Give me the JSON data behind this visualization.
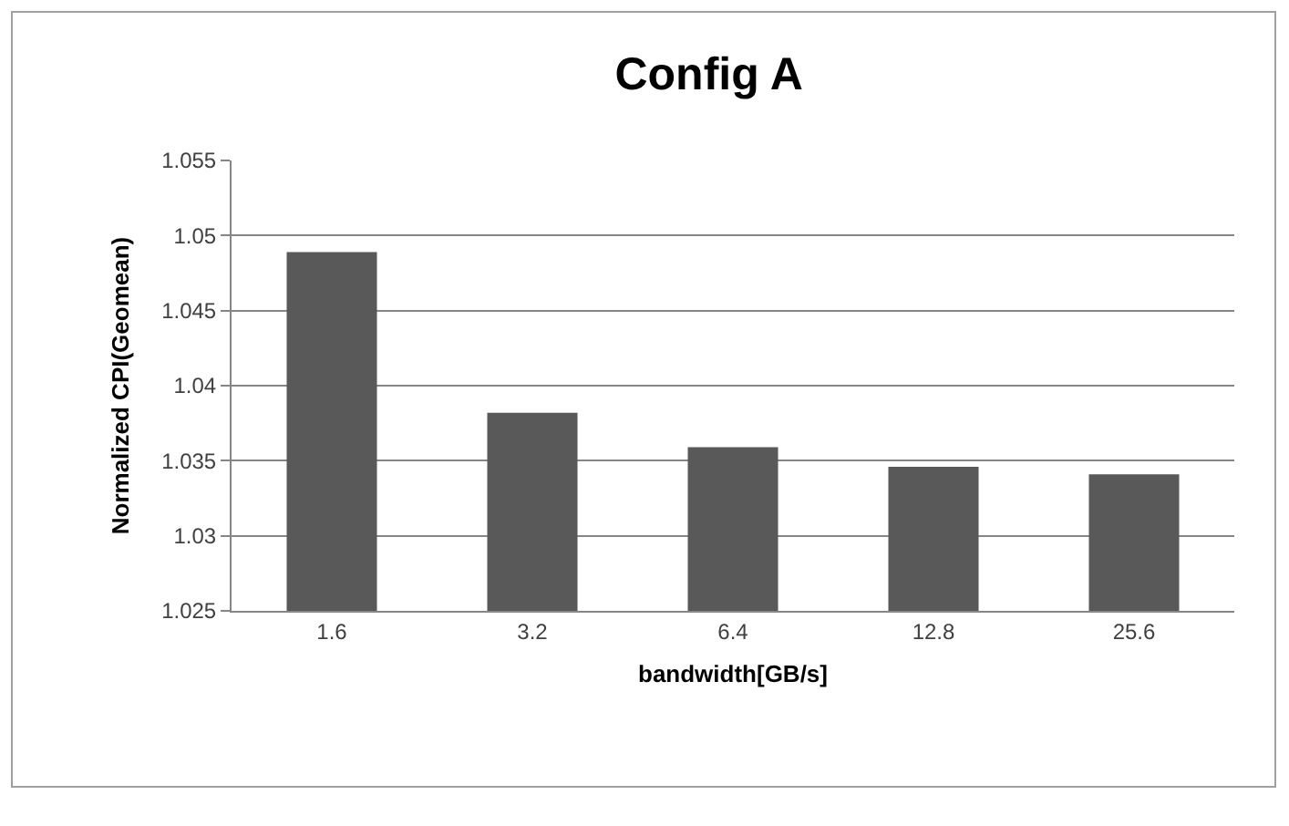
{
  "chart_data": {
    "type": "bar",
    "title": "Config A",
    "xlabel": "bandwidth[GB/s]",
    "ylabel": "Normalized CPI(Geomean)",
    "categories": [
      "1.6",
      "3.2",
      "6.4",
      "12.8",
      "25.6"
    ],
    "values": [
      1.0489,
      1.0382,
      1.0359,
      1.0346,
      1.0341
    ],
    "color": "#595959",
    "ylim": [
      1.025,
      1.055
    ],
    "yticks": [
      1.025,
      1.03,
      1.035,
      1.04,
      1.045,
      1.05,
      1.055
    ],
    "grid": "y"
  }
}
